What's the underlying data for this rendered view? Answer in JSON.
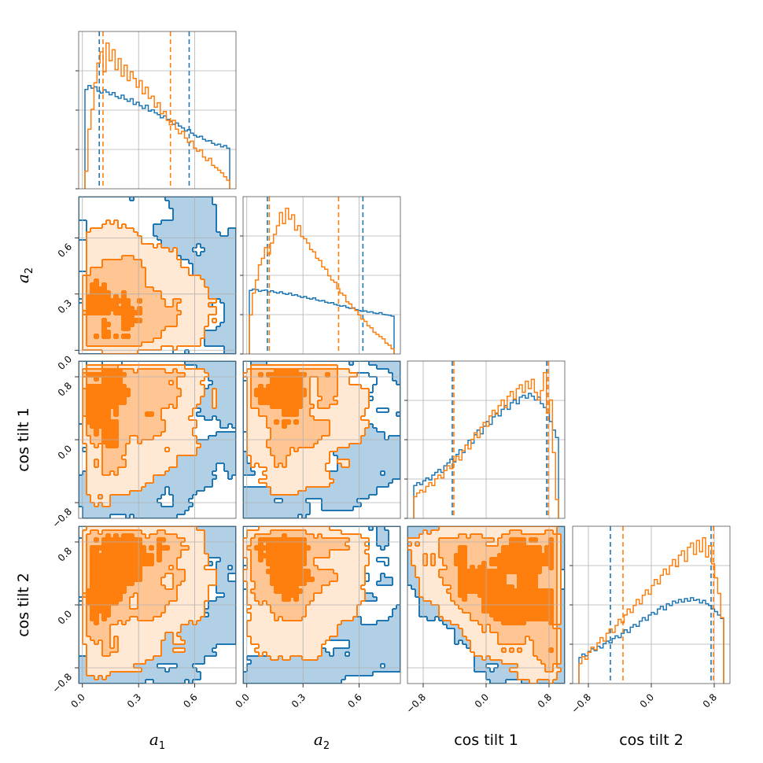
{
  "chart_data": {
    "type": "corner",
    "parameters": [
      {
        "key": "a1",
        "base": "a",
        "sub": "1",
        "label": "a1",
        "range": [
          -0.02,
          0.82
        ],
        "ticks": [
          0.0,
          0.3,
          0.6
        ],
        "tick_labels": [
          "0.0",
          "0.3",
          "0.6"
        ]
      },
      {
        "key": "a2",
        "base": "a",
        "sub": "2",
        "label": "a2",
        "range": [
          -0.02,
          0.82
        ],
        "ticks": [
          0.0,
          0.3,
          0.6
        ],
        "tick_labels": [
          "0.0",
          "0.3",
          "0.6"
        ]
      },
      {
        "key": "cos_tilt_1",
        "label": "cos tilt 1",
        "range": [
          -1.0,
          1.0
        ],
        "ticks": [
          -0.8,
          0.0,
          0.8
        ],
        "tick_labels": [
          "−0.8",
          "0.0",
          "0.8"
        ]
      },
      {
        "key": "cos_tilt_2",
        "label": "cos tilt 2",
        "range": [
          -1.0,
          1.0
        ],
        "ticks": [
          -0.8,
          0.0,
          0.8
        ],
        "tick_labels": [
          "−0.8",
          "0.0",
          "0.8"
        ]
      }
    ],
    "series": [
      {
        "color": "#1f77b4",
        "quantiles": {
          "a1": [
            0.09,
            0.57
          ],
          "a2": [
            0.11,
            0.62
          ],
          "cos_tilt_1": [
            -0.43,
            0.77
          ],
          "cos_tilt_2": [
            -0.52,
            0.76
          ]
        },
        "histograms": {
          "a1": [
            22.5,
            23.4,
            22.8,
            23.1,
            22.1,
            21.7,
            22.4,
            21.9,
            21.3,
            21.8,
            20.9,
            20.5,
            21.2,
            20.3,
            19.8,
            20.4,
            19.1,
            19.6,
            18.8,
            18.2,
            18.9,
            17.6,
            17.9,
            17.2,
            16.8,
            16.1,
            16.5,
            15.7,
            15.3,
            14.6,
            14.9,
            14.2,
            13.8,
            13.1,
            13.4,
            12.6,
            12.1,
            11.7,
            11.9,
            11.2,
            10.8,
            10.9,
            10.3,
            9.9,
            10.1,
            9.5,
            9.8,
            9.2
          ],
          "a2": [
            14.6,
            14.9,
            14.8,
            14.4,
            14.6,
            14.7,
            14.3,
            14.5,
            14.2,
            14.0,
            14.3,
            13.9,
            13.7,
            14.0,
            13.5,
            13.6,
            13.3,
            13.0,
            13.2,
            12.8,
            12.6,
            12.9,
            12.4,
            12.2,
            12.3,
            11.9,
            11.7,
            11.8,
            11.4,
            11.2,
            11.0,
            11.1,
            10.7,
            10.5,
            10.6,
            10.2,
            10.0,
            9.8,
            9.9,
            9.6,
            9.7,
            9.4,
            9.3,
            9.5,
            9.1,
            9.0,
            8.9,
            8.7
          ],
          "cos_tilt_1": [
            3.5,
            3.8,
            3.6,
            4.0,
            4.3,
            4.1,
            4.6,
            4.9,
            5.2,
            4.9,
            5.6,
            5.9,
            6.3,
            6.0,
            6.8,
            7.3,
            7.0,
            7.8,
            8.3,
            8.0,
            8.9,
            9.4,
            9.0,
            9.8,
            10.3,
            10.0,
            10.8,
            11.2,
            10.9,
            11.6,
            12.0,
            11.6,
            12.3,
            12.6,
            12.2,
            12.9,
            13.1,
            12.8,
            13.3,
            13.0,
            12.6,
            12.9,
            12.2,
            11.8,
            11.2,
            10.3,
            9.4,
            8.6
          ],
          "cos_tilt_2": [
            3.0,
            3.4,
            3.2,
            3.7,
            4.0,
            3.8,
            4.3,
            4.1,
            4.6,
            4.9,
            4.7,
            5.2,
            5.5,
            5.3,
            5.8,
            6.2,
            5.9,
            6.5,
            6.8,
            6.6,
            7.2,
            7.6,
            7.3,
            7.9,
            8.2,
            8.0,
            8.6,
            8.9,
            8.5,
            9.2,
            9.0,
            9.5,
            9.3,
            9.7,
            9.4,
            9.8,
            9.5,
            9.9,
            9.6,
            9.7,
            9.3,
            9.6,
            9.2,
            9.0,
            8.6,
            8.3,
            7.9,
            7.5
          ]
        }
      },
      {
        "color": "#ff7f0e",
        "quantiles": {
          "a1": [
            0.11,
            0.47
          ],
          "a2": [
            0.12,
            0.49
          ],
          "cos_tilt_1": [
            -0.41,
            0.79
          ],
          "cos_tilt_2": [
            -0.36,
            0.79
          ]
        },
        "histograms": {
          "a1": [
            4.0,
            13.5,
            18.0,
            24.0,
            28.5,
            31.0,
            26.5,
            33.0,
            29.0,
            31.5,
            27.0,
            29.5,
            25.5,
            28.0,
            24.5,
            26.5,
            25.0,
            23.0,
            24.5,
            21.5,
            23.0,
            20.5,
            21.0,
            18.5,
            19.5,
            17.0,
            17.5,
            15.5,
            14.5,
            15.5,
            13.5,
            12.5,
            13.0,
            11.5,
            10.5,
            10.8,
            9.2,
            8.5,
            8.8,
            7.2,
            6.4,
            6.9,
            5.3,
            4.8,
            4.2,
            3.6,
            2.7,
            1.9
          ],
          "a2": [
            9.0,
            14.0,
            17.0,
            20.5,
            22.0,
            24.5,
            23.0,
            25.5,
            27.5,
            29.5,
            32.5,
            30.0,
            33.5,
            31.0,
            32.0,
            28.5,
            29.5,
            27.0,
            26.5,
            25.5,
            24.0,
            23.5,
            22.0,
            21.5,
            20.0,
            19.5,
            18.0,
            17.0,
            16.5,
            15.0,
            14.0,
            13.5,
            12.0,
            11.5,
            10.5,
            10.0,
            9.0,
            8.0,
            7.5,
            6.5,
            6.0,
            5.0,
            4.5,
            4.0,
            3.5,
            2.5,
            2.0,
            1.2
          ],
          "cos_tilt_1": [
            2.3,
            2.7,
            3.0,
            2.8,
            3.4,
            3.8,
            3.5,
            4.2,
            4.6,
            4.3,
            5.1,
            5.6,
            5.3,
            6.1,
            6.6,
            6.2,
            7.2,
            7.8,
            7.4,
            8.4,
            9.1,
            8.6,
            9.7,
            10.2,
            9.8,
            10.9,
            11.5,
            11.1,
            12.0,
            12.6,
            11.8,
            13.0,
            13.5,
            12.7,
            13.8,
            14.2,
            13.4,
            14.6,
            13.8,
            14.8,
            13.4,
            12.6,
            13.6,
            15.5,
            11.2,
            12.6,
            7.0,
            2.0
          ],
          "cos_tilt_2": [
            2.3,
            3.1,
            2.8,
            3.6,
            4.2,
            3.9,
            4.7,
            5.3,
            4.9,
            5.8,
            6.3,
            5.9,
            6.7,
            7.4,
            7.0,
            7.9,
            8.6,
            8.2,
            9.0,
            9.7,
            9.2,
            10.2,
            10.8,
            10.3,
            11.3,
            12.0,
            11.5,
            12.5,
            13.2,
            12.6,
            13.6,
            14.3,
            13.5,
            14.8,
            15.3,
            14.1,
            15.7,
            16.2,
            14.9,
            16.5,
            15.2,
            16.8,
            14.6,
            15.9,
            13.8,
            12.2,
            10.4,
            7.6
          ]
        }
      }
    ]
  }
}
